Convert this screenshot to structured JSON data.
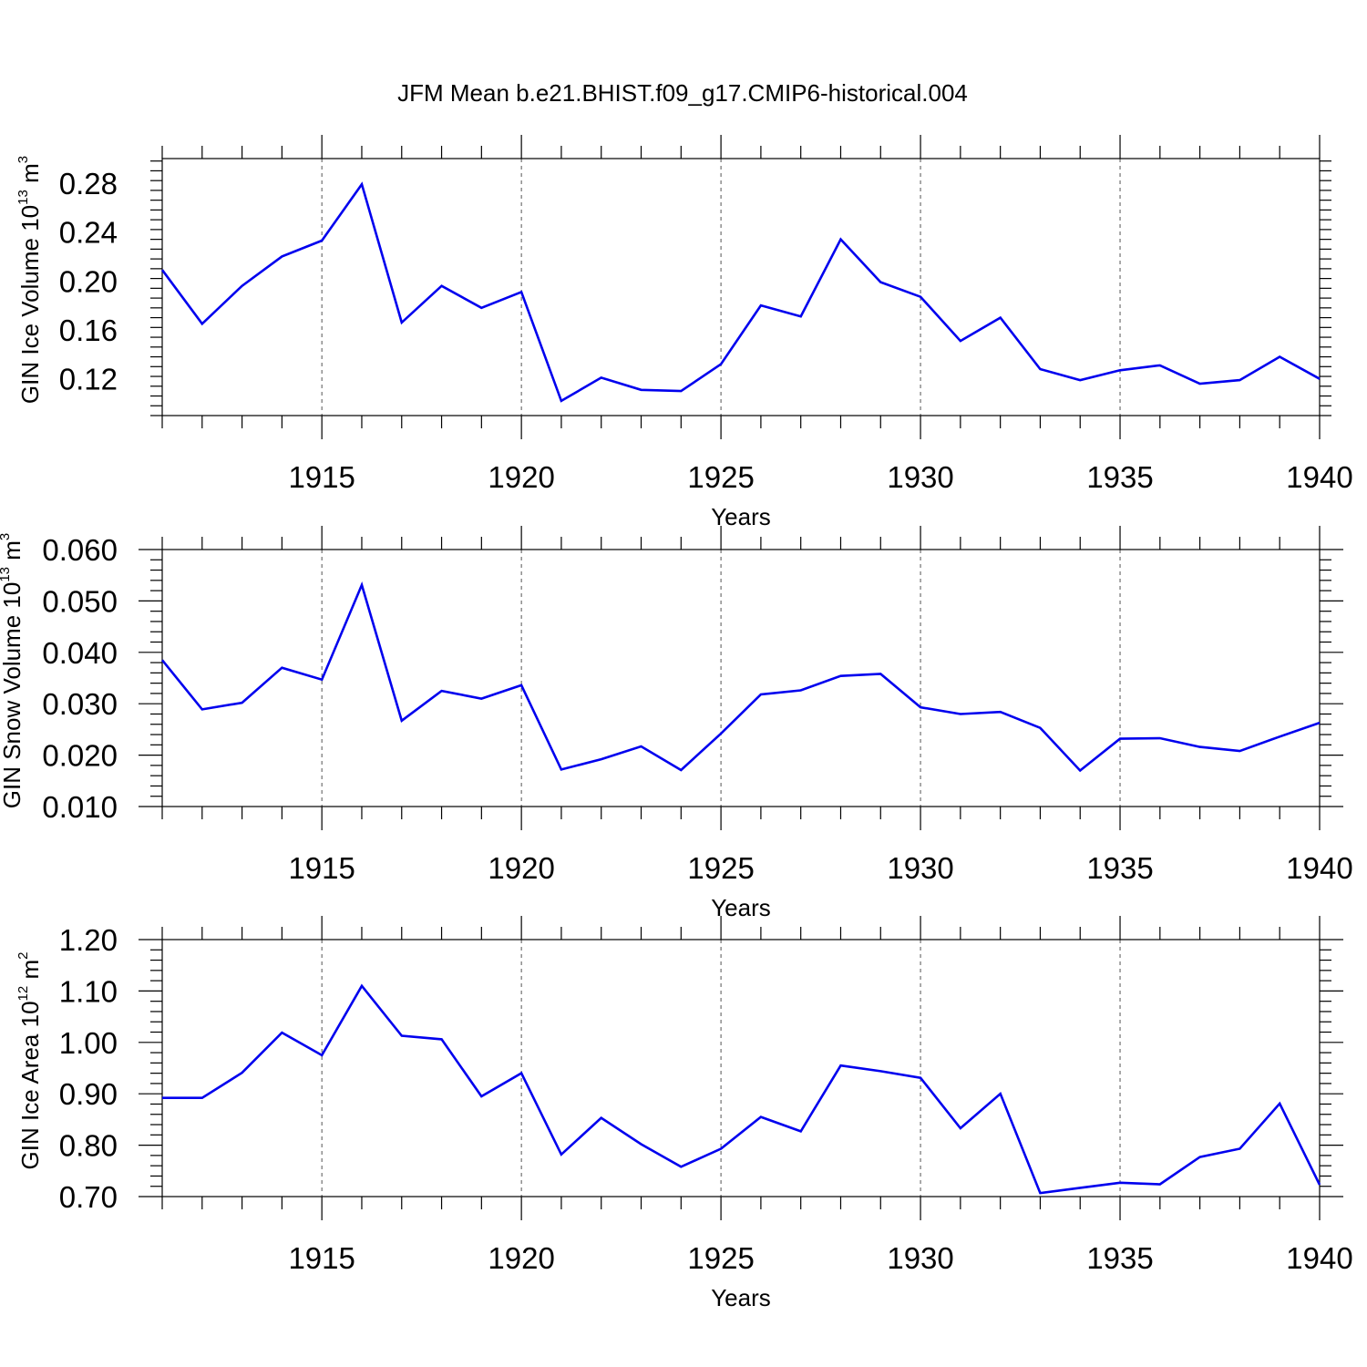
{
  "title": "JFM Mean b.e21.BHIST.f09_g17.CMIP6-historical.004",
  "chart_data": [
    {
      "type": "line",
      "title": "JFM Mean b.e21.BHIST.f09_g17.CMIP6-historical.004",
      "xlabel": "Years",
      "ylabel": "GIN Ice Volume 10",
      "ylabel_exp": "13",
      "ylabel_unit": " m",
      "ylabel_unit_exp": "3",
      "xlim": [
        1911,
        1940
      ],
      "ylim": [
        0.09,
        0.3
      ],
      "yticks": [
        0.12,
        0.16,
        0.2,
        0.24,
        0.28
      ],
      "ytick_labels": [
        "0.12",
        "0.16",
        "0.20",
        "0.24",
        "0.28"
      ],
      "xticks": [
        1915,
        1920,
        1925,
        1930,
        1935,
        1940
      ],
      "xtick_labels": [
        "1915",
        "1920",
        "1925",
        "1930",
        "1935",
        "1940"
      ],
      "grid": "vertical dashed at major x ticks",
      "color": "#0000ee",
      "x": [
        1911,
        1912,
        1913,
        1914,
        1915,
        1916,
        1917,
        1918,
        1919,
        1920,
        1921,
        1922,
        1923,
        1924,
        1925,
        1926,
        1927,
        1928,
        1929,
        1930,
        1931,
        1932,
        1933,
        1934,
        1935,
        1936,
        1937,
        1938,
        1939,
        1940
      ],
      "values": [
        0.209,
        0.165,
        0.196,
        0.22,
        0.233,
        0.279,
        0.166,
        0.196,
        0.178,
        0.191,
        0.102,
        0.121,
        0.111,
        0.11,
        0.132,
        0.18,
        0.171,
        0.234,
        0.199,
        0.187,
        0.151,
        0.17,
        0.128,
        0.119,
        0.127,
        0.131,
        0.116,
        0.119,
        0.138,
        0.12
      ]
    },
    {
      "type": "line",
      "xlabel": "Years",
      "ylabel": "GIN Snow Volume 10",
      "ylabel_exp": "13",
      "ylabel_unit": " m",
      "ylabel_unit_exp": "3",
      "xlim": [
        1911,
        1940
      ],
      "ylim": [
        0.01,
        0.06
      ],
      "yticks": [
        0.01,
        0.02,
        0.03,
        0.04,
        0.05,
        0.06
      ],
      "ytick_labels": [
        "0.010",
        "0.020",
        "0.030",
        "0.040",
        "0.050",
        "0.060"
      ],
      "xticks": [
        1915,
        1920,
        1925,
        1930,
        1935,
        1940
      ],
      "xtick_labels": [
        "1915",
        "1920",
        "1925",
        "1930",
        "1935",
        "1940"
      ],
      "grid": "vertical dashed at major x ticks",
      "color": "#0000ee",
      "x": [
        1911,
        1912,
        1913,
        1914,
        1915,
        1916,
        1917,
        1918,
        1919,
        1920,
        1921,
        1922,
        1923,
        1924,
        1925,
        1926,
        1927,
        1928,
        1929,
        1930,
        1931,
        1932,
        1933,
        1934,
        1935,
        1936,
        1937,
        1938,
        1939,
        1940
      ],
      "values": [
        0.0385,
        0.0289,
        0.0302,
        0.037,
        0.0347,
        0.0531,
        0.0267,
        0.0325,
        0.031,
        0.0336,
        0.0172,
        0.0192,
        0.0217,
        0.0171,
        0.0242,
        0.0318,
        0.0326,
        0.0354,
        0.0358,
        0.0293,
        0.028,
        0.0284,
        0.0253,
        0.017,
        0.0232,
        0.0233,
        0.0216,
        0.0208,
        0.0236,
        0.0263
      ]
    },
    {
      "type": "line",
      "xlabel": "Years",
      "ylabel": "GIN Ice Area 10",
      "ylabel_exp": "12",
      "ylabel_unit": " m",
      "ylabel_unit_exp": "2",
      "xlim": [
        1911,
        1940
      ],
      "ylim": [
        0.7,
        1.2
      ],
      "yticks": [
        0.7,
        0.8,
        0.9,
        1.0,
        1.1,
        1.2
      ],
      "ytick_labels": [
        "0.70",
        "0.80",
        "0.90",
        "1.00",
        "1.10",
        "1.20"
      ],
      "xticks": [
        1915,
        1920,
        1925,
        1930,
        1935,
        1940
      ],
      "xtick_labels": [
        "1915",
        "1920",
        "1925",
        "1930",
        "1935",
        "1940"
      ],
      "grid": "vertical dashed at major x ticks",
      "color": "#0000ee",
      "x": [
        1911,
        1912,
        1913,
        1914,
        1915,
        1916,
        1917,
        1918,
        1919,
        1920,
        1921,
        1922,
        1923,
        1924,
        1925,
        1926,
        1927,
        1928,
        1929,
        1930,
        1931,
        1932,
        1933,
        1934,
        1935,
        1936,
        1937,
        1938,
        1939,
        1940
      ],
      "values": [
        0.892,
        0.892,
        0.941,
        1.019,
        0.975,
        1.11,
        1.013,
        1.006,
        0.895,
        0.94,
        0.782,
        0.853,
        0.802,
        0.758,
        0.793,
        0.855,
        0.827,
        0.955,
        0.944,
        0.931,
        0.833,
        0.9,
        0.707,
        0.717,
        0.727,
        0.724,
        0.777,
        0.793,
        0.881,
        0.723
      ]
    }
  ]
}
